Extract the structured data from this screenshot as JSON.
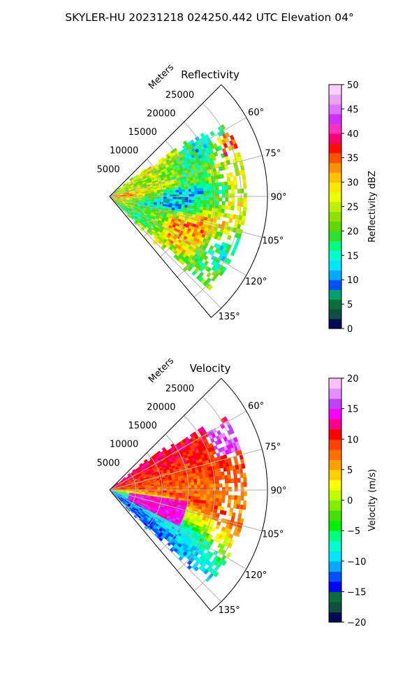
{
  "figure": {
    "title": "SKYLER-HU  20231218  024250.442 UTC Elevation 04°"
  },
  "chart_data": [
    {
      "type": "heatmap",
      "projection": "polar-sector",
      "title": "Reflectivity",
      "range_label": "Meters",
      "range_ticks": [
        5000,
        10000,
        15000,
        20000,
        25000
      ],
      "range_max": 30000,
      "azimuth_ticks": [
        "60°",
        "75°",
        "90°",
        "105°",
        "120°",
        "135°"
      ],
      "azimuth_tick_values": [
        60,
        75,
        90,
        105,
        120,
        135
      ],
      "azimuth_range": [
        45,
        140
      ],
      "grid": true,
      "colorbar": {
        "label": "Reflectivity dBZ",
        "min": 0,
        "max": 50,
        "ticks": [
          0,
          5,
          10,
          15,
          20,
          25,
          30,
          35,
          40,
          45,
          50
        ],
        "tick_labels": [
          "0",
          "5",
          "10",
          "15",
          "20",
          "25",
          "30",
          "35",
          "40",
          "45",
          "50"
        ],
        "colors": [
          "#000b55",
          "#0f4d3c",
          "#0a6e3c",
          "#00a06e",
          "#0050ff",
          "#00aaff",
          "#00e5ff",
          "#00ffcc",
          "#00ff80",
          "#30e030",
          "#60d800",
          "#90e000",
          "#c0f000",
          "#e8ff00",
          "#ffe800",
          "#ffc000",
          "#ff9000",
          "#ff5000",
          "#ff1000",
          "#ff0070",
          "#ff30c0",
          "#d030ff",
          "#e070ff",
          "#f0a0f0",
          "#ffd0ff"
        ]
      }
    },
    {
      "type": "heatmap",
      "projection": "polar-sector",
      "title": "Velocity",
      "range_label": "Meters",
      "range_ticks": [
        5000,
        10000,
        15000,
        20000,
        25000
      ],
      "range_max": 30000,
      "azimuth_ticks": [
        "60°",
        "75°",
        "90°",
        "105°",
        "120°",
        "135°"
      ],
      "azimuth_tick_values": [
        60,
        75,
        90,
        105,
        120,
        135
      ],
      "azimuth_range": [
        45,
        140
      ],
      "grid": true,
      "colorbar": {
        "label": "Velocity (m/s)",
        "min": -20,
        "max": 20,
        "ticks": [
          -20,
          -15,
          -10,
          -5,
          0,
          5,
          10,
          15,
          20
        ],
        "tick_labels": [
          "−20",
          "−15",
          "−10",
          "−5",
          "0",
          "5",
          "10",
          "15",
          "20"
        ],
        "colors": [
          "#000b55",
          "#0f4d3c",
          "#0a6e3c",
          "#0000ff",
          "#0050ff",
          "#00aaff",
          "#00e5ff",
          "#00ffcc",
          "#00ff80",
          "#00ee00",
          "#40e000",
          "#80ee00",
          "#c0ff00",
          "#ffff00",
          "#ffd000",
          "#ffa000",
          "#ff7000",
          "#ff4000",
          "#ff0000",
          "#ff0090",
          "#ff00ff",
          "#c040ff",
          "#e090ff",
          "#ffc0ff"
        ]
      }
    }
  ]
}
